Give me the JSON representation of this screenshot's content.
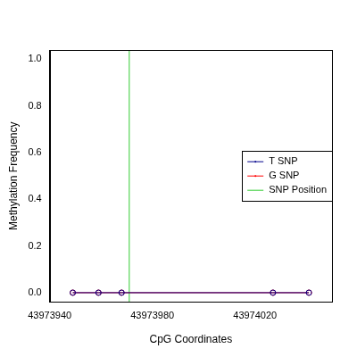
{
  "chart_data": {
    "type": "line",
    "x_label": "CpG Coordinates",
    "y_label": "Methylation Frequency",
    "x": [
      43973949,
      43973959,
      43973968,
      43974027,
      43974041
    ],
    "series": [
      {
        "name": "T SNP",
        "color": "#00008b",
        "marker": "circle",
        "values": [
          0,
          0,
          0,
          0,
          0
        ]
      },
      {
        "name": "G SNP",
        "color": "#ff0000",
        "marker": "circle",
        "values": [
          0,
          0,
          0,
          0,
          0
        ]
      }
    ],
    "vlines": [
      {
        "name": "SNP Position",
        "x": 43973971,
        "color": "#33cc33"
      }
    ],
    "xlim": [
      43973940,
      43974050
    ],
    "xticks": [
      43973940,
      43973980,
      43974020
    ],
    "ylim": [
      -0.04,
      1.04
    ],
    "yticks": [
      {
        "value": 0,
        "label": "0.0"
      },
      {
        "value": 0.2,
        "label": "0.2"
      },
      {
        "value": 0.4,
        "label": "0.4"
      },
      {
        "value": 0.6,
        "label": "0.6"
      },
      {
        "value": 0.8,
        "label": "0.8"
      },
      {
        "value": 1,
        "label": "1.0"
      }
    ],
    "grid": false,
    "legend": "right"
  }
}
